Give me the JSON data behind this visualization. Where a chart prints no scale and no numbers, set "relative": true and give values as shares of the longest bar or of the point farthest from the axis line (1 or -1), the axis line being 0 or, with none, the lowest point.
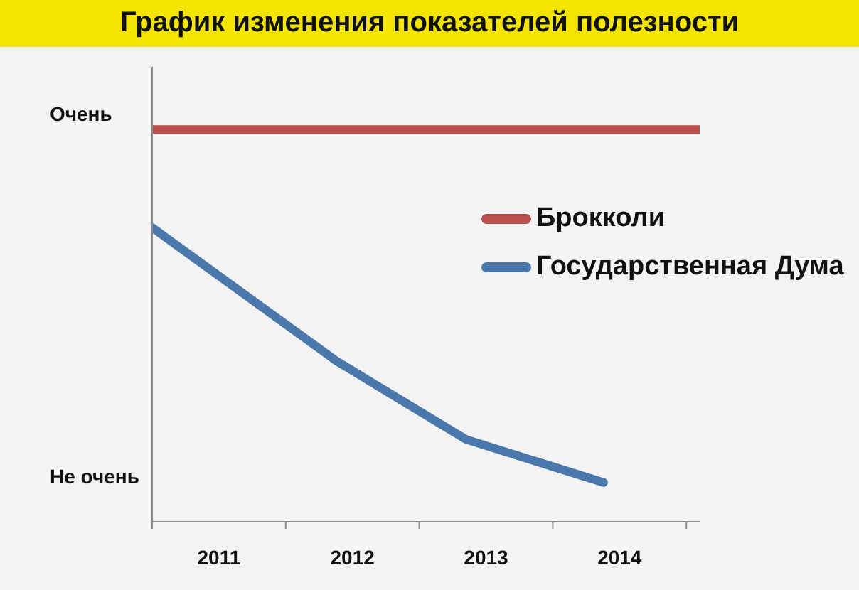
{
  "chart_data": {
    "type": "line",
    "title": "График изменения показателей полезности",
    "relative": true,
    "xlim": [
      2010.5,
      2014.6
    ],
    "xticks": [
      {
        "value": 2010.5,
        "label": null
      },
      2011,
      {
        "value": 2011.5,
        "label": null
      },
      2012,
      {
        "value": 2012.5,
        "label": null
      },
      2013,
      {
        "value": 2013.5,
        "label": null
      },
      2014,
      {
        "value": 2014.5,
        "label": null
      }
    ],
    "series": [
      {
        "name": "Брокколи",
        "color": "#b94f4c",
        "x": [
          2010.5,
          2014.6
        ],
        "values": [
          1,
          1
        ]
      },
      {
        "name": "Государственная Дума",
        "color": "#4a78aa",
        "x": [
          2010.5,
          2011.88,
          2012.85,
          2013.88
        ],
        "values": [
          0.75,
          0.41,
          0.21,
          0.1
        ]
      }
    ],
    "annotations": [
      "Очень",
      "Не очень"
    ],
    "legend": "right"
  }
}
